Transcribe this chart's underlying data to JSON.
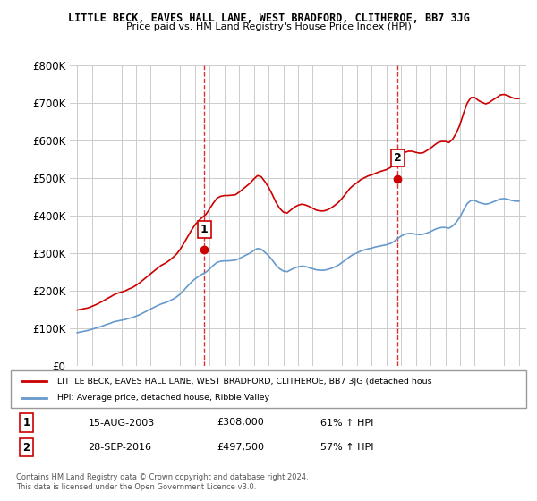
{
  "title": "LITTLE BECK, EAVES HALL LANE, WEST BRADFORD, CLITHEROE, BB7 3JG",
  "subtitle": "Price paid vs. HM Land Registry's House Price Index (HPI)",
  "ylabel_ticks": [
    "£0",
    "£100K",
    "£200K",
    "£300K",
    "£400K",
    "£500K",
    "£600K",
    "£700K",
    "£800K"
  ],
  "ytick_vals": [
    0,
    100000,
    200000,
    300000,
    400000,
    500000,
    600000,
    700000,
    800000
  ],
  "ylim": [
    0,
    800000
  ],
  "xlim_start": 1994.5,
  "xlim_end": 2025.5,
  "sale1_year": 2003.62,
  "sale1_price": 308000,
  "sale1_label": "1",
  "sale1_date": "15-AUG-2003",
  "sale1_hpi_pct": "61% ↑ HPI",
  "sale2_year": 2016.75,
  "sale2_price": 497500,
  "sale2_label": "2",
  "sale2_date": "28-SEP-2016",
  "sale2_hpi_pct": "57% ↑ HPI",
  "red_line_color": "#cc0000",
  "blue_line_color": "#6699cc",
  "vline_color": "#cc0000",
  "grid_color": "#cccccc",
  "bg_color": "#ffffff",
  "legend_label_red": "LITTLE BECK, EAVES HALL LANE, WEST BRADFORD, CLITHEROE, BB7 3JG (detached hous",
  "legend_label_blue": "HPI: Average price, detached house, Ribble Valley",
  "footer1": "Contains HM Land Registry data © Crown copyright and database right 2024.",
  "footer2": "This data is licensed under the Open Government Licence v3.0.",
  "hpi_years": [
    1995,
    1995.25,
    1995.5,
    1995.75,
    1996,
    1996.25,
    1996.5,
    1996.75,
    1997,
    1997.25,
    1997.5,
    1997.75,
    1998,
    1998.25,
    1998.5,
    1998.75,
    1999,
    1999.25,
    1999.5,
    1999.75,
    2000,
    2000.25,
    2000.5,
    2000.75,
    2001,
    2001.25,
    2001.5,
    2001.75,
    2002,
    2002.25,
    2002.5,
    2002.75,
    2003,
    2003.25,
    2003.5,
    2003.75,
    2004,
    2004.25,
    2004.5,
    2004.75,
    2005,
    2005.25,
    2005.5,
    2005.75,
    2006,
    2006.25,
    2006.5,
    2006.75,
    2007,
    2007.25,
    2007.5,
    2007.75,
    2008,
    2008.25,
    2008.5,
    2008.75,
    2009,
    2009.25,
    2009.5,
    2009.75,
    2010,
    2010.25,
    2010.5,
    2010.75,
    2011,
    2011.25,
    2011.5,
    2011.75,
    2012,
    2012.25,
    2012.5,
    2012.75,
    2013,
    2013.25,
    2013.5,
    2013.75,
    2014,
    2014.25,
    2014.5,
    2014.75,
    2015,
    2015.25,
    2015.5,
    2015.75,
    2016,
    2016.25,
    2016.5,
    2016.75,
    2017,
    2017.25,
    2017.5,
    2017.75,
    2018,
    2018.25,
    2018.5,
    2018.75,
    2019,
    2019.25,
    2019.5,
    2019.75,
    2020,
    2020.25,
    2020.5,
    2020.75,
    2021,
    2021.25,
    2021.5,
    2021.75,
    2022,
    2022.25,
    2022.5,
    2022.75,
    2023,
    2023.25,
    2023.5,
    2023.75,
    2024,
    2024.25,
    2024.5,
    2024.75,
    2025
  ],
  "hpi_values": [
    88000,
    90000,
    92000,
    94000,
    97000,
    100000,
    103000,
    106000,
    110000,
    113000,
    117000,
    119000,
    121000,
    123000,
    126000,
    128000,
    132000,
    136000,
    141000,
    146000,
    151000,
    156000,
    161000,
    165000,
    168000,
    172000,
    177000,
    183000,
    191000,
    201000,
    212000,
    222000,
    231000,
    238000,
    244000,
    249000,
    258000,
    267000,
    275000,
    278000,
    279000,
    279000,
    280000,
    281000,
    285000,
    290000,
    295000,
    300000,
    307000,
    312000,
    310000,
    302000,
    293000,
    281000,
    268000,
    258000,
    252000,
    250000,
    255000,
    260000,
    263000,
    265000,
    264000,
    261000,
    258000,
    255000,
    254000,
    254000,
    256000,
    259000,
    263000,
    268000,
    275000,
    282000,
    290000,
    296000,
    300000,
    305000,
    308000,
    311000,
    313000,
    316000,
    318000,
    320000,
    322000,
    325000,
    330000,
    338000,
    345000,
    350000,
    352000,
    352000,
    350000,
    349000,
    350000,
    353000,
    357000,
    362000,
    366000,
    368000,
    368000,
    366000,
    372000,
    382000,
    396000,
    415000,
    432000,
    440000,
    440000,
    435000,
    432000,
    430000,
    432000,
    436000,
    440000,
    444000,
    445000,
    443000,
    440000,
    438000,
    438000
  ],
  "red_years": [
    1995,
    1995.25,
    1995.5,
    1995.75,
    1996,
    1996.25,
    1996.5,
    1996.75,
    1997,
    1997.25,
    1997.5,
    1997.75,
    1998,
    1998.25,
    1998.5,
    1998.75,
    1999,
    1999.25,
    1999.5,
    1999.75,
    2000,
    2000.25,
    2000.5,
    2000.75,
    2001,
    2001.25,
    2001.5,
    2001.75,
    2002,
    2002.25,
    2002.5,
    2002.75,
    2003,
    2003.25,
    2003.5,
    2003.75,
    2004,
    2004.25,
    2004.5,
    2004.75,
    2005,
    2005.25,
    2005.5,
    2005.75,
    2006,
    2006.25,
    2006.5,
    2006.75,
    2007,
    2007.25,
    2007.5,
    2007.75,
    2008,
    2008.25,
    2008.5,
    2008.75,
    2009,
    2009.25,
    2009.5,
    2009.75,
    2010,
    2010.25,
    2010.5,
    2010.75,
    2011,
    2011.25,
    2011.5,
    2011.75,
    2012,
    2012.25,
    2012.5,
    2012.75,
    2013,
    2013.25,
    2013.5,
    2013.75,
    2014,
    2014.25,
    2014.5,
    2014.75,
    2015,
    2015.25,
    2015.5,
    2015.75,
    2016,
    2016.25,
    2016.5,
    2016.75,
    2017,
    2017.25,
    2017.5,
    2017.75,
    2018,
    2018.25,
    2018.5,
    2018.75,
    2019,
    2019.25,
    2019.5,
    2019.75,
    2020,
    2020.25,
    2020.5,
    2020.75,
    2021,
    2021.25,
    2021.5,
    2021.75,
    2022,
    2022.25,
    2022.5,
    2022.75,
    2023,
    2023.25,
    2023.5,
    2023.75,
    2024,
    2024.25,
    2024.5,
    2024.75,
    2025
  ],
  "red_values": [
    148000,
    150000,
    152000,
    154000,
    158000,
    162000,
    167000,
    172000,
    178000,
    183000,
    189000,
    193000,
    196000,
    199000,
    204000,
    208000,
    214000,
    221000,
    229000,
    237000,
    245000,
    253000,
    261000,
    268000,
    273000,
    280000,
    288000,
    297000,
    310000,
    326000,
    343000,
    360000,
    375000,
    386000,
    395000,
    403000,
    418000,
    433000,
    446000,
    451000,
    453000,
    453000,
    454000,
    455000,
    462000,
    470000,
    478000,
    486000,
    497000,
    506000,
    503000,
    490000,
    475000,
    456000,
    435000,
    419000,
    409000,
    406000,
    414000,
    422000,
    427000,
    430000,
    428000,
    424000,
    419000,
    414000,
    412000,
    412000,
    415000,
    420000,
    427000,
    435000,
    446000,
    458000,
    471000,
    480000,
    487000,
    495000,
    500000,
    505000,
    508000,
    512000,
    516000,
    519000,
    522000,
    527000,
    535000,
    549000,
    560000,
    568000,
    571000,
    571000,
    568000,
    566000,
    567000,
    573000,
    579000,
    587000,
    594000,
    597000,
    597000,
    594000,
    603000,
    619000,
    642000,
    673000,
    700000,
    714000,
    714000,
    706000,
    701000,
    697000,
    701000,
    708000,
    714000,
    721000,
    722000,
    719000,
    714000,
    711000,
    711000
  ]
}
